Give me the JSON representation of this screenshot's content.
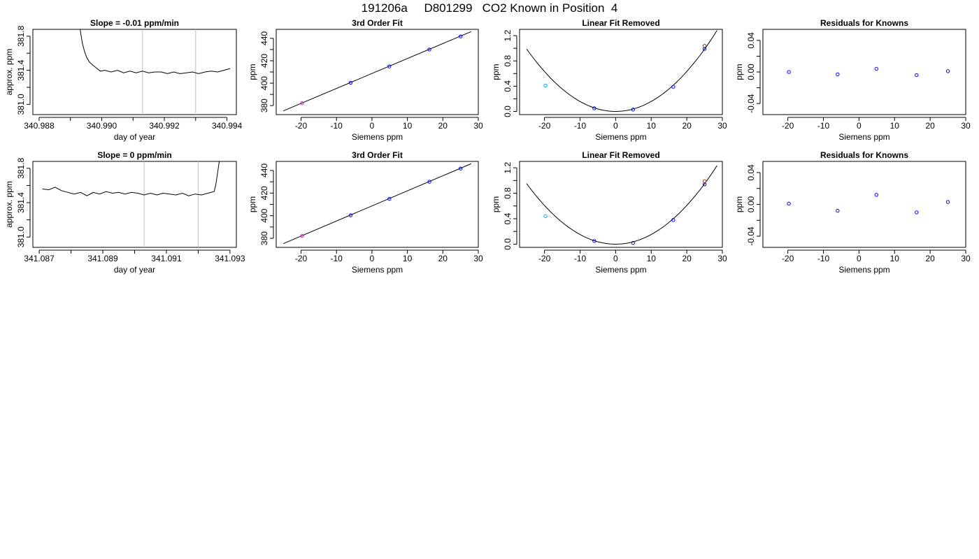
{
  "page": {
    "title": "191206a     D801299   CO2 Known in Position  4"
  },
  "colors": {
    "axis": "#000000",
    "trace": "#000000",
    "vline": "#bfbfbf",
    "point_blue": "#0000ff",
    "point_red": "#ff0000",
    "point_cyan": "#00aaff",
    "point_magenta": "#ff00ff"
  },
  "chart_data": [
    {
      "type": "line",
      "title": "Slope =  -0.01  ppm/min",
      "xlabel": "day of year",
      "ylabel": "approx. ppm",
      "xlim": [
        340.9878,
        340.9943
      ],
      "ylim": [
        380.88,
        381.88
      ],
      "xticks": [
        340.988,
        340.989,
        340.99,
        340.991,
        340.992,
        340.993,
        340.994
      ],
      "xtick_labels": [
        "340.988",
        "",
        "340.990",
        "",
        "340.992",
        "",
        "340.994"
      ],
      "yticks": [
        381.0,
        381.2,
        381.4,
        381.6,
        381.8
      ],
      "ytick_labels": [
        "381.0",
        "",
        "381.4",
        "",
        "381.8"
      ],
      "vlines": [
        340.9913,
        340.993
      ],
      "series": [
        {
          "x": [
            340.9893,
            340.98938,
            340.98945,
            340.98952,
            340.9896,
            340.98968,
            340.98975,
            340.98985,
            340.98995,
            340.9901,
            340.9903,
            340.9905,
            340.9907,
            340.9909,
            340.9911,
            340.9913,
            340.9915,
            340.9917,
            340.9919,
            340.9921,
            340.9923,
            340.9925,
            340.9927,
            340.9929,
            340.9931,
            340.9933,
            340.9935,
            340.9937,
            340.9939,
            340.9941
          ],
          "y": [
            381.9,
            381.72,
            381.62,
            381.55,
            381.5,
            381.47,
            381.45,
            381.42,
            381.39,
            381.4,
            381.38,
            381.4,
            381.37,
            381.39,
            381.37,
            381.39,
            381.37,
            381.38,
            381.38,
            381.36,
            381.38,
            381.36,
            381.37,
            381.38,
            381.36,
            381.38,
            381.39,
            381.38,
            381.4,
            381.42
          ]
        }
      ]
    },
    {
      "type": "scatter",
      "title": "3rd Order Fit",
      "xlabel": "Siemens ppm",
      "ylabel": "ppm",
      "xlim": [
        -27,
        30
      ],
      "ylim": [
        372,
        448
      ],
      "xticks": [
        -20,
        -10,
        0,
        10,
        20,
        30
      ],
      "xtick_labels": [
        "-20",
        "-10",
        "0",
        "10",
        "20",
        "30"
      ],
      "yticks": [
        380,
        390,
        400,
        410,
        420,
        430,
        440
      ],
      "ytick_labels": [
        "380",
        "",
        "400",
        "",
        "420",
        "",
        "440"
      ],
      "fit_line": {
        "x": [
          -25,
          28
        ],
        "y": [
          375.3,
          446.0
        ]
      },
      "points": [
        {
          "x": -19.7,
          "y": 382.2,
          "color": "point_magenta"
        },
        {
          "x": -6.0,
          "y": 400.4,
          "color": "point_blue"
        },
        {
          "x": 4.9,
          "y": 414.9,
          "color": "point_blue"
        },
        {
          "x": 16.2,
          "y": 430.0,
          "color": "point_blue"
        },
        {
          "x": 25.0,
          "y": 441.7,
          "color": "point_blue"
        }
      ]
    },
    {
      "type": "scatter",
      "title": "Linear Fit Removed",
      "xlabel": "Siemens ppm",
      "ylabel": "ppm",
      "xlim": [
        -27,
        30
      ],
      "ylim": [
        -0.05,
        1.3
      ],
      "xticks": [
        -20,
        -10,
        0,
        10,
        20,
        30
      ],
      "xtick_labels": [
        "-20",
        "-10",
        "0",
        "10",
        "20",
        "30"
      ],
      "yticks": [
        0.0,
        0.2,
        0.4,
        0.6,
        0.8,
        1.0,
        1.2
      ],
      "ytick_labels": [
        "0.0",
        "",
        "0.4",
        "",
        "0.8",
        "",
        "1.2"
      ],
      "curve": {
        "x_from": -25,
        "x_to": 28.5,
        "a": 0.00158,
        "b": 0
      },
      "points": [
        {
          "x": -19.7,
          "y": 0.41,
          "color": "point_cyan"
        },
        {
          "x": -6.0,
          "y": 0.05,
          "color": "point_blue"
        },
        {
          "x": 4.9,
          "y": 0.03,
          "color": "point_blue"
        },
        {
          "x": 16.2,
          "y": 0.39,
          "color": "point_blue"
        },
        {
          "x": 25.0,
          "y": 0.99,
          "color": "point_blue"
        },
        {
          "x": 25.0,
          "y": 1.04,
          "color": "point_red"
        }
      ]
    },
    {
      "type": "scatter",
      "title": "Residuals for Knowns",
      "xlabel": "Siemens ppm",
      "ylabel": "ppm",
      "xlim": [
        -27,
        30
      ],
      "ylim": [
        -0.054,
        0.054
      ],
      "xticks": [
        -20,
        -10,
        0,
        10,
        20,
        30
      ],
      "xtick_labels": [
        "-20",
        "-10",
        "0",
        "10",
        "20",
        "30"
      ],
      "yticks": [
        -0.04,
        -0.02,
        0.0,
        0.02,
        0.04
      ],
      "ytick_labels": [
        "-0.04",
        "",
        "0.00",
        "",
        "0.04"
      ],
      "points": [
        {
          "x": -19.7,
          "y": 0.0,
          "color": "point_blue"
        },
        {
          "x": -6.0,
          "y": -0.003,
          "color": "point_blue"
        },
        {
          "x": 4.9,
          "y": 0.004,
          "color": "point_blue"
        },
        {
          "x": 16.2,
          "y": -0.004,
          "color": "point_blue"
        },
        {
          "x": 25.0,
          "y": 0.001,
          "color": "point_blue"
        }
      ]
    },
    {
      "type": "line",
      "title": "Slope =  0  ppm/min",
      "xlabel": "day of year",
      "ylabel": "approx. ppm",
      "xlim": [
        341.0868,
        341.0932
      ],
      "ylim": [
        380.88,
        381.88
      ],
      "xticks": [
        341.087,
        341.088,
        341.089,
        341.09,
        341.091,
        341.092,
        341.093
      ],
      "xtick_labels": [
        "341.087",
        "",
        "341.089",
        "",
        "341.091",
        "",
        "341.093"
      ],
      "yticks": [
        381.0,
        381.2,
        381.4,
        381.6,
        381.8
      ],
      "ytick_labels": [
        "381.0",
        "",
        "381.4",
        "",
        "381.8"
      ],
      "vlines": [
        341.0903,
        341.092
      ],
      "series": [
        {
          "x": [
            341.0871,
            341.0873,
            341.0875,
            341.0877,
            341.0879,
            341.0881,
            341.0883,
            341.0885,
            341.0887,
            341.0889,
            341.0891,
            341.0893,
            341.0895,
            341.0897,
            341.0899,
            341.0901,
            341.0903,
            341.0905,
            341.0907,
            341.0909,
            341.0911,
            341.0913,
            341.0915,
            341.0917,
            341.0919,
            341.0921,
            341.0923,
            341.0925,
            341.09255,
            341.0926,
            341.09265,
            341.0927
          ],
          "y": [
            381.56,
            381.55,
            381.58,
            381.54,
            381.52,
            381.5,
            381.52,
            381.48,
            381.52,
            381.5,
            381.53,
            381.51,
            381.52,
            381.5,
            381.52,
            381.51,
            381.49,
            381.51,
            381.49,
            381.51,
            381.5,
            381.49,
            381.51,
            381.48,
            381.5,
            381.49,
            381.51,
            381.53,
            381.6,
            381.72,
            381.85,
            381.95
          ]
        }
      ]
    },
    {
      "type": "scatter",
      "title": "3rd Order Fit",
      "xlabel": "Siemens ppm",
      "ylabel": "ppm",
      "xlim": [
        -27,
        30
      ],
      "ylim": [
        372,
        448
      ],
      "xticks": [
        -20,
        -10,
        0,
        10,
        20,
        30
      ],
      "xtick_labels": [
        "-20",
        "-10",
        "0",
        "10",
        "20",
        "30"
      ],
      "yticks": [
        380,
        390,
        400,
        410,
        420,
        430,
        440
      ],
      "ytick_labels": [
        "380",
        "",
        "400",
        "",
        "420",
        "",
        "440"
      ],
      "fit_line": {
        "x": [
          -25,
          28
        ],
        "y": [
          375.3,
          446.0
        ]
      },
      "points": [
        {
          "x": -19.7,
          "y": 382.2,
          "color": "point_magenta"
        },
        {
          "x": -6.0,
          "y": 400.4,
          "color": "point_blue"
        },
        {
          "x": 4.9,
          "y": 414.9,
          "color": "point_blue"
        },
        {
          "x": 16.2,
          "y": 430.0,
          "color": "point_blue"
        },
        {
          "x": 25.0,
          "y": 441.7,
          "color": "point_blue"
        }
      ]
    },
    {
      "type": "scatter",
      "title": "Linear Fit Removed",
      "xlabel": "Siemens ppm",
      "ylabel": "ppm",
      "xlim": [
        -27,
        30
      ],
      "ylim": [
        -0.05,
        1.3
      ],
      "xticks": [
        -20,
        -10,
        0,
        10,
        20,
        30
      ],
      "xtick_labels": [
        "-20",
        "-10",
        "0",
        "10",
        "20",
        "30"
      ],
      "yticks": [
        0.0,
        0.2,
        0.4,
        0.6,
        0.8,
        1.0,
        1.2
      ],
      "ytick_labels": [
        "0.0",
        "",
        "0.4",
        "",
        "0.8",
        "",
        "1.2"
      ],
      "curve": {
        "x_from": -25,
        "x_to": 28.5,
        "a": 0.00152,
        "b": 0
      },
      "points": [
        {
          "x": -19.7,
          "y": 0.44,
          "color": "point_cyan"
        },
        {
          "x": -6.0,
          "y": 0.05,
          "color": "point_blue"
        },
        {
          "x": 4.9,
          "y": 0.02,
          "color": "point_blue"
        },
        {
          "x": 16.2,
          "y": 0.38,
          "color": "point_blue"
        },
        {
          "x": 25.0,
          "y": 0.94,
          "color": "point_blue"
        },
        {
          "x": 25.0,
          "y": 0.99,
          "color": "point_red"
        }
      ]
    },
    {
      "type": "scatter",
      "title": "Residuals for Knowns",
      "xlabel": "Siemens ppm",
      "ylabel": "ppm",
      "xlim": [
        -27,
        30
      ],
      "ylim": [
        -0.054,
        0.054
      ],
      "xticks": [
        -20,
        -10,
        0,
        10,
        20,
        30
      ],
      "xtick_labels": [
        "-20",
        "-10",
        "0",
        "10",
        "20",
        "30"
      ],
      "yticks": [
        -0.04,
        -0.02,
        0.0,
        0.02,
        0.04
      ],
      "ytick_labels": [
        "-0.04",
        "",
        "0.00",
        "",
        "0.04"
      ],
      "points": [
        {
          "x": -19.7,
          "y": 0.001,
          "color": "point_blue"
        },
        {
          "x": -6.0,
          "y": -0.008,
          "color": "point_blue"
        },
        {
          "x": 4.9,
          "y": 0.012,
          "color": "point_blue"
        },
        {
          "x": 16.2,
          "y": -0.01,
          "color": "point_blue"
        },
        {
          "x": 25.0,
          "y": 0.003,
          "color": "point_blue"
        }
      ]
    }
  ]
}
